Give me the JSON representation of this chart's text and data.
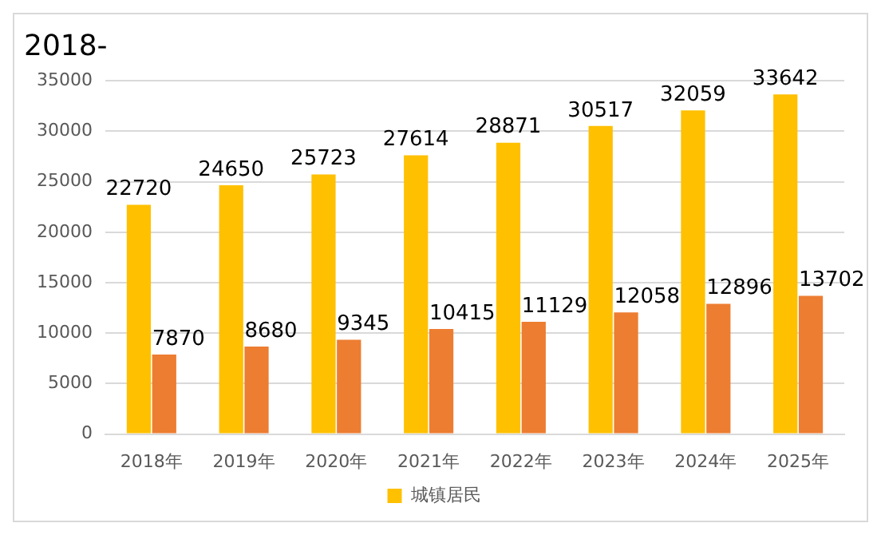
{
  "chart_data": {
    "type": "bar",
    "title": "2018-",
    "categories": [
      "2018年",
      "2019年",
      "2020年",
      "2021年",
      "2022年",
      "2023年",
      "2024年",
      "2025年"
    ],
    "series": [
      {
        "name": "城镇居民",
        "color": "#ffc000",
        "values": [
          22720,
          24650,
          25723,
          27614,
          28871,
          30517,
          32059,
          33642
        ]
      },
      {
        "color": "#ed7d31",
        "values": [
          7870,
          8680,
          9345,
          10415,
          11129,
          12058,
          12896,
          13702
        ]
      }
    ],
    "ylim": [
      0,
      35000
    ],
    "yticks": [
      0,
      5000,
      10000,
      15000,
      20000,
      25000,
      30000,
      35000
    ],
    "grid": "y",
    "legend": "bottom",
    "data_labels": true
  }
}
